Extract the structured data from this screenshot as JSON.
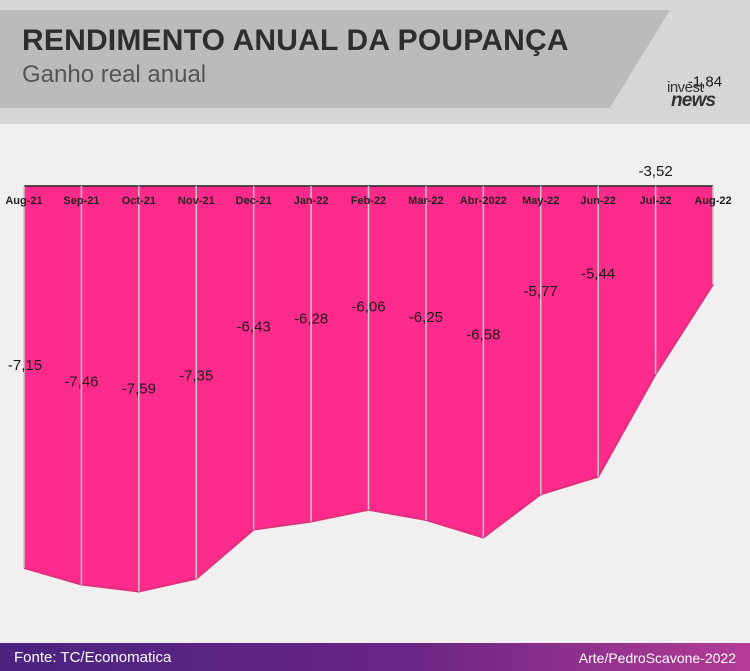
{
  "header": {
    "title": "RENDIMENTO ANUAL DA POUPANÇA",
    "subtitle": "Ganho real anual",
    "logo_line1": "invest",
    "logo_line2": "news"
  },
  "footer": {
    "source": "Fonte: TC/Economatica",
    "credit": "Arte/PedroScavone-2022"
  },
  "colors": {
    "area_fill": "#ff2b8c",
    "area_edge": "#e0307c",
    "separator": "#c7c7c7"
  },
  "chart_data": {
    "type": "area",
    "title": "RENDIMENTO ANUAL DA POUPANÇA",
    "subtitle": "Ganho real anual",
    "categories": [
      "Aug-21",
      "Sep-21",
      "Oct-21",
      "Nov-21",
      "Dec-21",
      "Jan-22",
      "Feb-22",
      "Mar-22",
      "Abr-2022",
      "May-22",
      "Jun-22",
      "Jul-22",
      "Aug-22"
    ],
    "values": [
      -7.15,
      -7.46,
      -7.59,
      -7.35,
      -6.43,
      -6.28,
      -6.06,
      -6.25,
      -6.58,
      -5.77,
      -5.44,
      -3.52,
      -1.84
    ],
    "value_labels": [
      "-7,15",
      "-7,46",
      "-7,59",
      "-7,35",
      "-6,43",
      "-6,28",
      "-6,06",
      "-6,25",
      "-6,58",
      "-5,77",
      "-5,44",
      "-3,52",
      "-1,84"
    ],
    "xaxis_position": "top",
    "ylim": [
      -7.6,
      0
    ],
    "grid": false,
    "legend": "none"
  }
}
